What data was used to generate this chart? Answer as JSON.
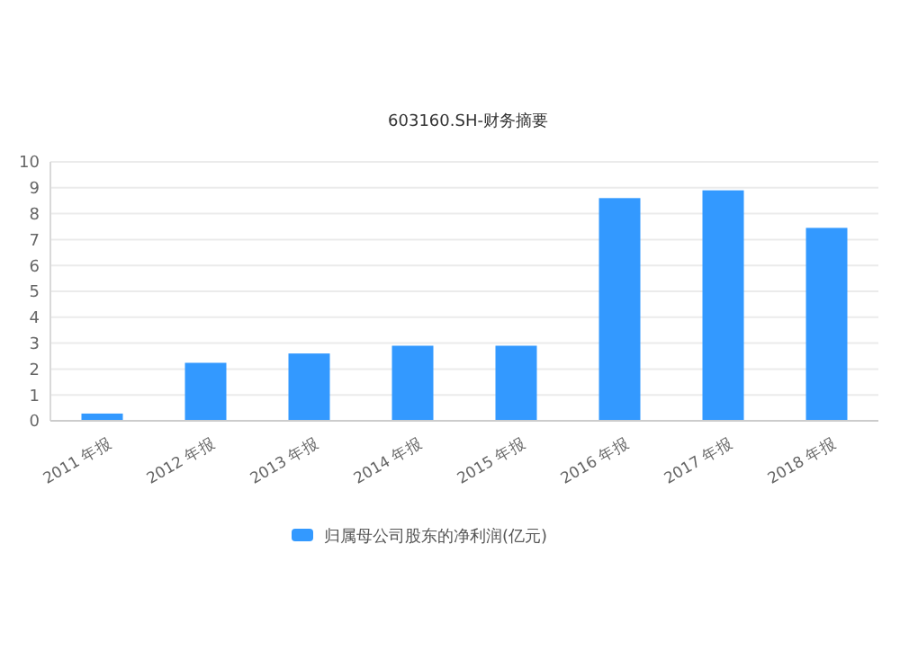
{
  "chart_data": {
    "type": "bar",
    "title": "603160.SH-财务摘要",
    "categories": [
      "2011 年报",
      "2012 年报",
      "2013 年报",
      "2014 年报",
      "2015 年报",
      "2016 年报",
      "2017 年报",
      "2018 年报"
    ],
    "series": [
      {
        "name": "归属母公司股东的净利润(亿元)",
        "color": "#3399ff",
        "values": [
          0.28,
          2.24,
          2.6,
          2.9,
          2.9,
          8.6,
          8.9,
          7.45
        ]
      }
    ],
    "ylim": [
      0,
      10
    ],
    "yticks": [
      0,
      1,
      2,
      3,
      4,
      5,
      6,
      7,
      8,
      9,
      10
    ],
    "grid": "y",
    "legend": "bottom"
  }
}
